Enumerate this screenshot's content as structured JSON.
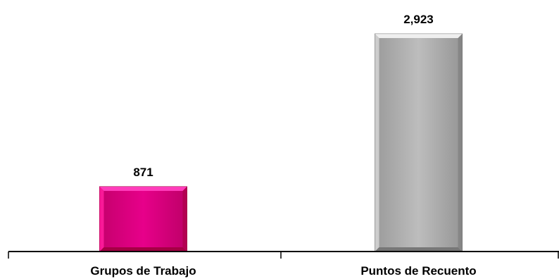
{
  "chart_data": {
    "type": "bar",
    "categories": [
      "Grupos de Trabajo",
      "Puntos de Recuento"
    ],
    "values": [
      871,
      2923
    ],
    "data_labels": [
      "871",
      "2,923"
    ],
    "title": "",
    "xlabel": "",
    "ylabel": "",
    "ylim": [
      0,
      3000
    ],
    "grid": false,
    "legend": "none",
    "colors": [
      "#e0007f",
      "#b3b3b3"
    ],
    "bar_style": "beveled"
  }
}
